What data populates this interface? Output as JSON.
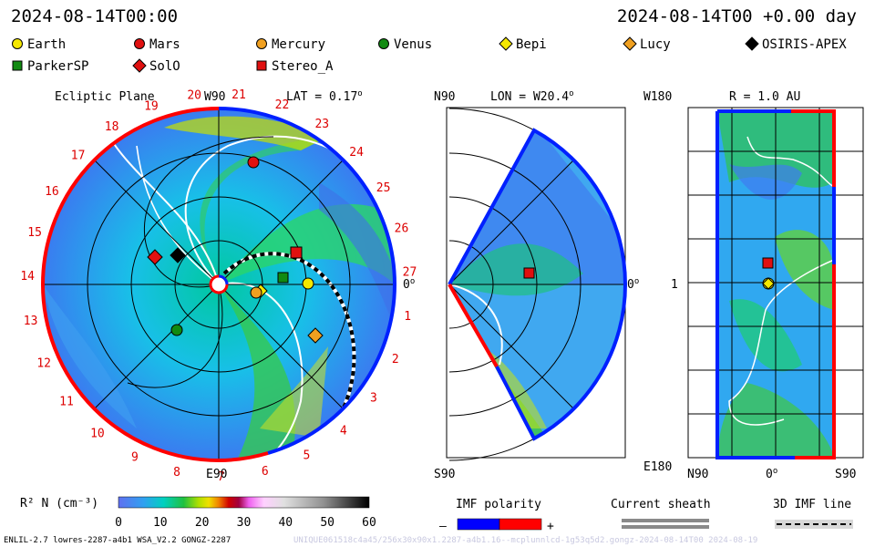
{
  "header": {
    "left_time": "2024-08-14T00:00",
    "right_time": "2024-08-14T00 +0.00 day"
  },
  "legend": [
    {
      "name": "Earth",
      "marker": "circle",
      "color": "#f5e800"
    },
    {
      "name": "Mars",
      "marker": "circle",
      "color": "#e01010"
    },
    {
      "name": "Mercury",
      "marker": "circle",
      "color": "#f0a020"
    },
    {
      "name": "Venus",
      "marker": "circle",
      "color": "#118a11"
    },
    {
      "name": "Bepi",
      "marker": "diamond",
      "color": "#f5e800"
    },
    {
      "name": "Lucy",
      "marker": "diamond",
      "color": "#f0a020"
    },
    {
      "name": "OSIRIS-APEX",
      "marker": "diamond",
      "color": "#000000"
    },
    {
      "name": "ParkerSP",
      "marker": "square",
      "color": "#118a11"
    },
    {
      "name": "SolO",
      "marker": "diamond",
      "color": "#e01010"
    },
    {
      "name": "Stereo_A",
      "marker": "square",
      "color": "#e01010"
    }
  ],
  "panels": {
    "ecliptic": {
      "title": "Ecliptic Plane",
      "lat": "LAT = 0.17",
      "top_label": "W90",
      "bottom_label": "E90",
      "right_label": "0",
      "carrington_labels": [
        "1",
        "2",
        "3",
        "4",
        "5",
        "6",
        "7",
        "8",
        "9",
        "10",
        "11",
        "12",
        "13",
        "14",
        "15",
        "16",
        "17",
        "18",
        "19",
        "20",
        "21",
        "22",
        "23",
        "24",
        "25",
        "26",
        "27"
      ]
    },
    "meridional": {
      "lon": "LON = W20.4",
      "top_label": "N90",
      "bottom_label": "S90",
      "right_label": "0"
    },
    "radial": {
      "r": "R = 1.0 AU",
      "top_label": "W180",
      "bottom_label": "E180",
      "mid_label": "1",
      "x_labels": [
        "N90",
        "0",
        "S90"
      ]
    }
  },
  "colorbar": {
    "label": "R² N (cm⁻³)",
    "ticks": [
      "0",
      "10",
      "20",
      "30",
      "40",
      "50",
      "60"
    ]
  },
  "imf_polarity": {
    "label": "IMF polarity",
    "minus": "–",
    "plus": "+",
    "neg_color": "#0000ff",
    "pos_color": "#ff0000"
  },
  "current_sheath": {
    "label": "Current sheath"
  },
  "imf_line": {
    "label": "3D IMF line"
  },
  "footer": {
    "left": "ENLIL-2.7 lowres-2287-a4b1 WSA_V2.2 GONGZ-2287",
    "right": "UNIQUE061518c4a45/256x30x90x1.2287-a4b1.16--mcplunnlcd-1g53q5d2.gongz-2024-08-14T00  2024-08-19"
  }
}
